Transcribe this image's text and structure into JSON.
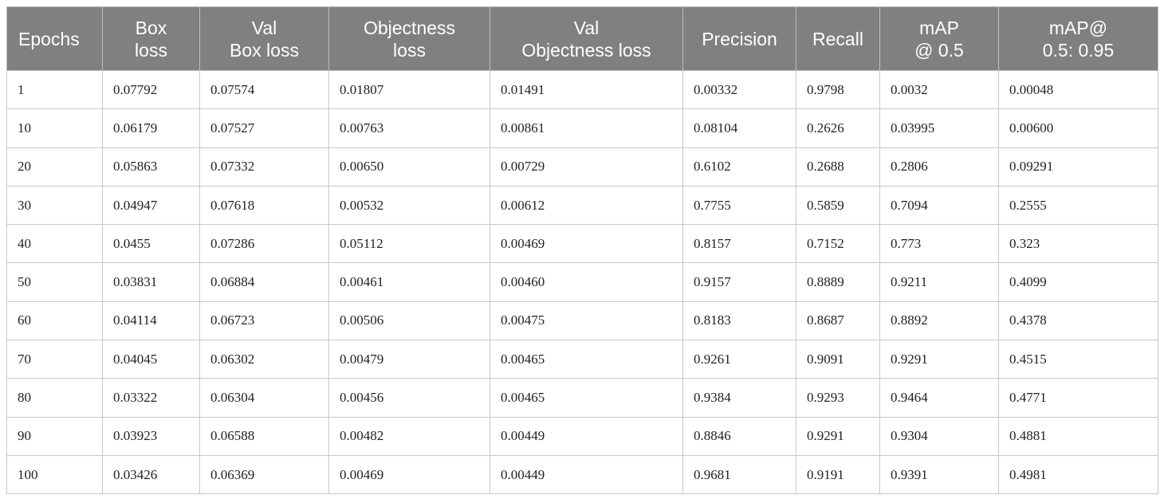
{
  "table": {
    "header": [
      [
        "Epochs"
      ],
      [
        "Box",
        "loss"
      ],
      [
        "Val",
        "Box loss"
      ],
      [
        "Objectness",
        "loss"
      ],
      [
        "Val",
        "Objectness loss"
      ],
      [
        "Precision"
      ],
      [
        "Recall"
      ],
      [
        "mAP",
        "@ 0.5"
      ],
      [
        "mAP@",
        "0.5: 0.95"
      ]
    ],
    "rows": [
      [
        "1",
        "0.07792",
        "0.07574",
        "0.01807",
        "0.01491",
        "0.00332",
        "0.9798",
        "0.0032",
        "0.00048"
      ],
      [
        "10",
        "0.06179",
        "0.07527",
        "0.00763",
        "0.00861",
        "0.08104",
        "0.2626",
        "0.03995",
        "0.00600"
      ],
      [
        "20",
        "0.05863",
        "0.07332",
        "0.00650",
        "0.00729",
        "0.6102",
        "0.2688",
        "0.2806",
        "0.09291"
      ],
      [
        "30",
        "0.04947",
        "0.07618",
        "0.00532",
        "0.00612",
        "0.7755",
        "0.5859",
        "0.7094",
        "0.2555"
      ],
      [
        "40",
        "0.0455",
        "0.07286",
        "0.05112",
        "0.00469",
        "0.8157",
        "0.7152",
        "0.773",
        "0.323"
      ],
      [
        "50",
        "0.03831",
        "0.06884",
        "0.00461",
        "0.00460",
        "0.9157",
        "0.8889",
        "0.9211",
        "0.4099"
      ],
      [
        "60",
        "0.04114",
        "0.06723",
        "0.00506",
        "0.00475",
        "0.8183",
        "0.8687",
        "0.8892",
        "0.4378"
      ],
      [
        "70",
        "0.04045",
        "0.06302",
        "0.00479",
        "0.00465",
        "0.9261",
        "0.9091",
        "0.9291",
        "0.4515"
      ],
      [
        "80",
        "0.03322",
        "0.06304",
        "0.00456",
        "0.00465",
        "0.9384",
        "0.9293",
        "0.9464",
        "0.4771"
      ],
      [
        "90",
        "0.03923",
        "0.06588",
        "0.00482",
        "0.00449",
        "0.8846",
        "0.9291",
        "0.9304",
        "0.4881"
      ],
      [
        "100",
        "0.03426",
        "0.06369",
        "0.00469",
        "0.00449",
        "0.9681",
        "0.9191",
        "0.9391",
        "0.4981"
      ]
    ]
  }
}
